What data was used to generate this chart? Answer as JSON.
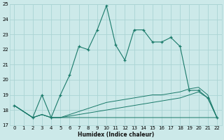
{
  "xlabel": "Humidex (Indice chaleur)",
  "bg_color": "#cce9e9",
  "grid_color": "#aad4d4",
  "line_color": "#1a7a6a",
  "xlim": [
    -0.5,
    22.5
  ],
  "ylim": [
    17,
    25
  ],
  "xticks": [
    0,
    1,
    2,
    3,
    4,
    5,
    6,
    7,
    8,
    9,
    10,
    11,
    12,
    13,
    14,
    15,
    16,
    17,
    18,
    19,
    20,
    21,
    22
  ],
  "yticks": [
    17,
    18,
    19,
    20,
    21,
    22,
    23,
    24,
    25
  ],
  "main_line_x": [
    0,
    2,
    3,
    4,
    5,
    6,
    7,
    8,
    9,
    10,
    11,
    12,
    13,
    14,
    15,
    16,
    17,
    18,
    19,
    20,
    21,
    22
  ],
  "main_line_y": [
    18.3,
    17.5,
    19.0,
    17.5,
    19.0,
    20.3,
    22.2,
    22.0,
    23.3,
    24.9,
    22.3,
    21.3,
    23.3,
    23.3,
    22.5,
    22.5,
    22.8,
    22.2,
    19.3,
    19.3,
    18.8,
    17.5
  ],
  "flat_line1_x": [
    0,
    2,
    3,
    4,
    5,
    6,
    7,
    8,
    9,
    10,
    11,
    12,
    13,
    14,
    15,
    16,
    17,
    18,
    19,
    20,
    21,
    22
  ],
  "flat_line1_y": [
    18.3,
    17.5,
    17.7,
    17.5,
    17.5,
    17.5,
    17.5,
    17.5,
    17.5,
    17.5,
    17.5,
    17.5,
    17.5,
    17.5,
    17.5,
    17.5,
    17.5,
    17.5,
    17.5,
    17.5,
    17.5,
    17.5
  ],
  "flat_line2_x": [
    0,
    2,
    3,
    4,
    5,
    6,
    7,
    8,
    9,
    10,
    11,
    12,
    13,
    14,
    15,
    16,
    17,
    18,
    19,
    20,
    21,
    22
  ],
  "flat_line2_y": [
    18.3,
    17.5,
    17.7,
    17.5,
    17.5,
    17.6,
    17.7,
    17.8,
    17.9,
    18.0,
    18.1,
    18.2,
    18.3,
    18.4,
    18.5,
    18.6,
    18.7,
    18.8,
    19.0,
    19.2,
    18.8,
    17.5
  ],
  "flat_line3_x": [
    0,
    2,
    3,
    4,
    5,
    6,
    7,
    8,
    9,
    10,
    11,
    12,
    13,
    14,
    15,
    16,
    17,
    18,
    19,
    20,
    21,
    22
  ],
  "flat_line3_y": [
    18.3,
    17.5,
    17.7,
    17.5,
    17.5,
    17.7,
    17.9,
    18.1,
    18.3,
    18.5,
    18.6,
    18.7,
    18.8,
    18.9,
    19.0,
    19.0,
    19.1,
    19.2,
    19.4,
    19.5,
    19.0,
    17.5
  ]
}
